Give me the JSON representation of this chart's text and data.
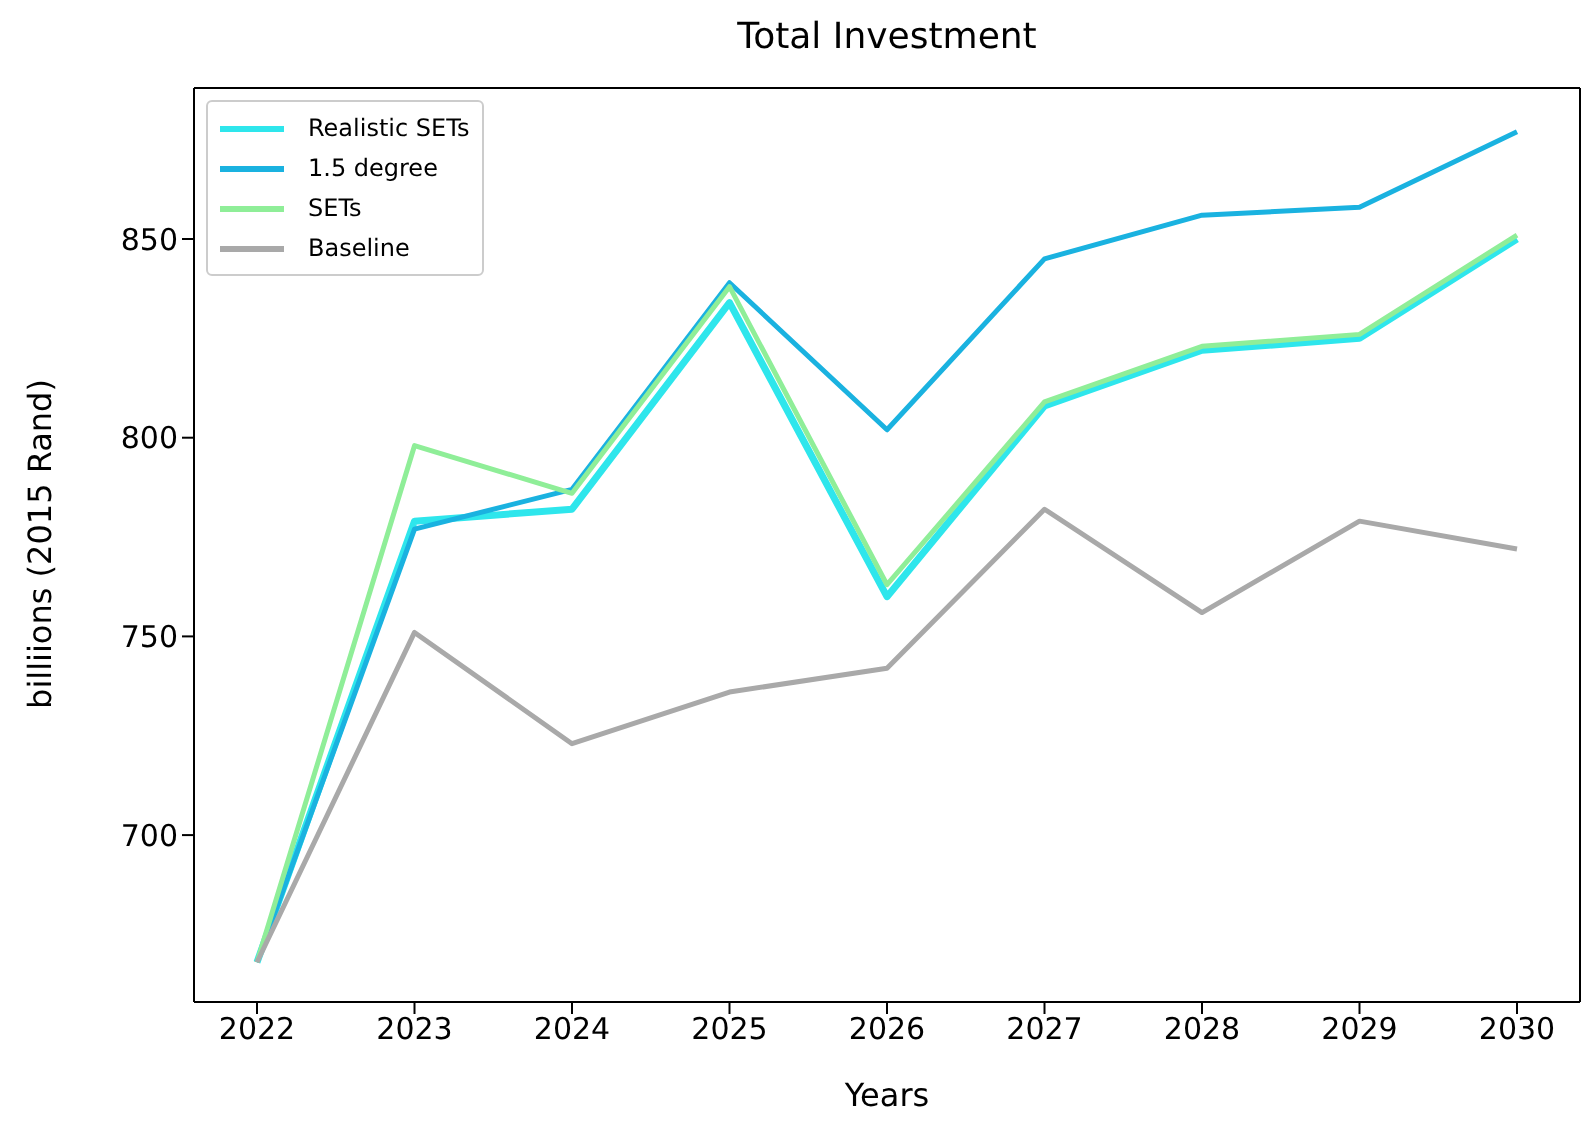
{
  "chart_data": {
    "type": "line",
    "title": "Total Investment",
    "xlabel": "Years",
    "ylabel": "billiions (2015 Rand)",
    "x": [
      2022,
      2023,
      2024,
      2025,
      2026,
      2027,
      2028,
      2029,
      2030
    ],
    "xlim": [
      2021.6,
      2030.4
    ],
    "xticks": [
      2022,
      2023,
      2024,
      2025,
      2026,
      2027,
      2028,
      2029,
      2030
    ],
    "ylim": [
      658,
      888
    ],
    "yticks": [
      700,
      750,
      800,
      850
    ],
    "series": [
      {
        "name": "Realistic SETs",
        "color": "#2ee6ec",
        "values": [
          668,
          779,
          782,
          834,
          760,
          808,
          822,
          825,
          850
        ]
      },
      {
        "name": "1.5 degree",
        "color": "#1ab2e0",
        "values": [
          668,
          777,
          787,
          839,
          802,
          845,
          856,
          858,
          877
        ]
      },
      {
        "name": "SETs",
        "color": "#8fee98",
        "values": [
          668,
          798,
          786,
          838,
          763,
          809,
          823,
          826,
          851
        ]
      },
      {
        "name": "Baseline",
        "color": "#a9a9a9",
        "values": [
          668,
          751,
          723,
          736,
          742,
          782,
          756,
          779,
          772
        ]
      }
    ],
    "legend": "top left",
    "grid": false,
    "marker": "none",
    "line_style": "solid"
  }
}
